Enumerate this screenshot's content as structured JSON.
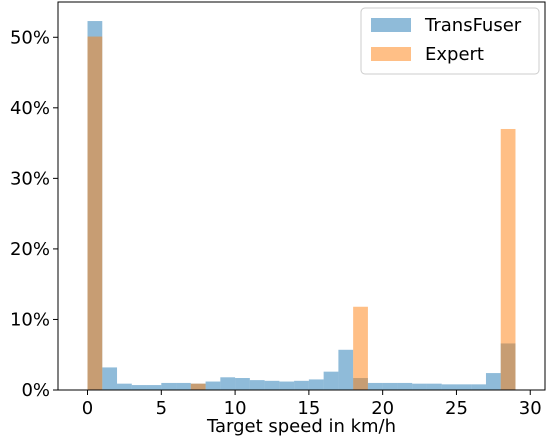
{
  "chart_data": {
    "type": "bar",
    "bin_edges": [
      0,
      1,
      2,
      3,
      4,
      5,
      6,
      7,
      8,
      9,
      10,
      11,
      12,
      13,
      14,
      15,
      16,
      17,
      18,
      19,
      20,
      21,
      22,
      23,
      24,
      25,
      26,
      27,
      28,
      29
    ],
    "series": [
      {
        "name": "TransFuser",
        "color": "#1f77b4",
        "alpha": 0.5,
        "values": [
          52.3,
          3.2,
          0.9,
          0.7,
          0.7,
          1.0,
          1.0,
          0.9,
          1.2,
          1.8,
          1.7,
          1.4,
          1.3,
          1.2,
          1.3,
          1.5,
          2.6,
          5.7,
          1.7,
          1.0,
          1.0,
          1.0,
          0.9,
          0.9,
          0.8,
          0.8,
          0.8,
          2.4,
          6.6
        ]
      },
      {
        "name": "Expert",
        "color": "#ff7f0e",
        "alpha": 0.5,
        "values": [
          50.1,
          0,
          0,
          0,
          0,
          0,
          0,
          0.9,
          0,
          0,
          0,
          0,
          0,
          0,
          0,
          0,
          0,
          0,
          11.8,
          0,
          0,
          0,
          0,
          0,
          0,
          0,
          0,
          0,
          37.0
        ]
      }
    ],
    "xlabel": "Target speed in km/h",
    "ylabel": "",
    "xlim": [
      -2,
      31
    ],
    "ylim": [
      0,
      55
    ],
    "xticks": [
      0,
      5,
      10,
      15,
      20,
      25,
      30
    ],
    "yticks": [
      0,
      10,
      20,
      30,
      40,
      50
    ],
    "ytick_suffix": "%",
    "grid": false,
    "legend_position": "top-right"
  }
}
